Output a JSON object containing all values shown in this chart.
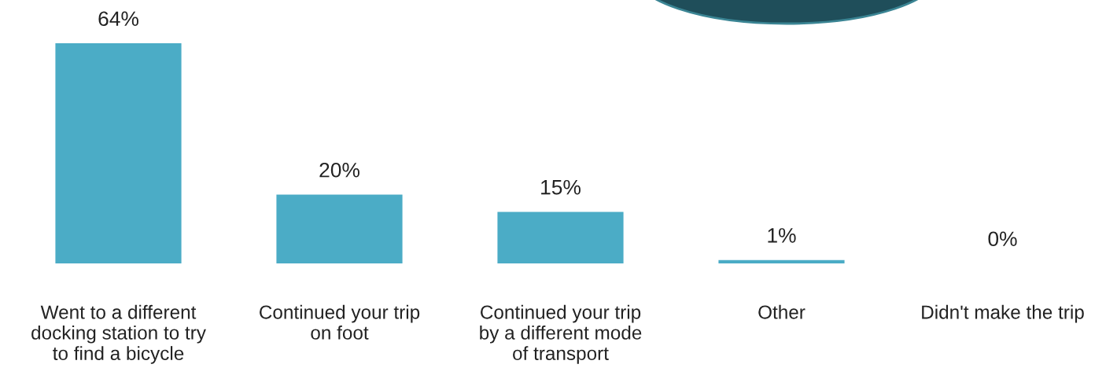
{
  "chart_data": {
    "type": "bar",
    "categories": [
      "Went to a different\ndocking station to try\nto find a bicycle",
      "Continued your trip\non foot",
      "Continued your trip\nby a different mode\nof transport",
      "Other",
      "Didn't make the trip"
    ],
    "values": [
      64,
      20,
      15,
      1,
      0
    ],
    "color": "#4bacc6",
    "data_labels": true,
    "value_labels": [
      "64%",
      "20%",
      "15%",
      "1%",
      "0%"
    ],
    "grid": false,
    "legend": false
  }
}
